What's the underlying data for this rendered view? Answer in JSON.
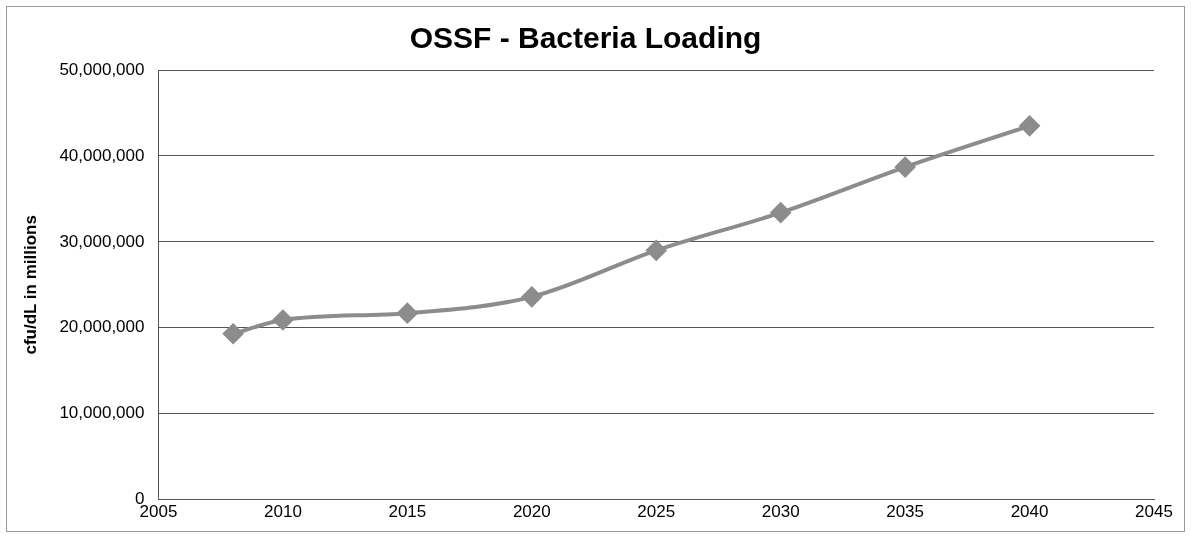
{
  "chart_data": {
    "type": "line",
    "title": "OSSF - Bacteria Loading",
    "ylabel": "cfu/dL in millions",
    "x": [
      2008,
      2010,
      2015,
      2020,
      2025,
      2030,
      2035,
      2040
    ],
    "series": [
      {
        "color": "#8c8c8c",
        "values": [
          19300000,
          20900000,
          21700000,
          23600000,
          29000000,
          33400000,
          38700000,
          43500000
        ]
      }
    ],
    "xlim": [
      2005,
      2045
    ],
    "xticks": [
      2005,
      2010,
      2015,
      2020,
      2025,
      2030,
      2035,
      2040,
      2045
    ],
    "ylim": [
      0,
      50000000
    ],
    "yticks": [
      0,
      {
        "value": 10000000,
        "label": "10,000,000"
      },
      {
        "value": 20000000,
        "label": "20,000,000"
      },
      {
        "value": 30000000,
        "label": "30,000,000"
      },
      {
        "value": 40000000,
        "label": "40,000,000"
      },
      {
        "value": 50000000,
        "label": "50,000,000"
      }
    ],
    "grid": "y",
    "legend": false,
    "marker": "diamond",
    "line_style": "solid"
  }
}
